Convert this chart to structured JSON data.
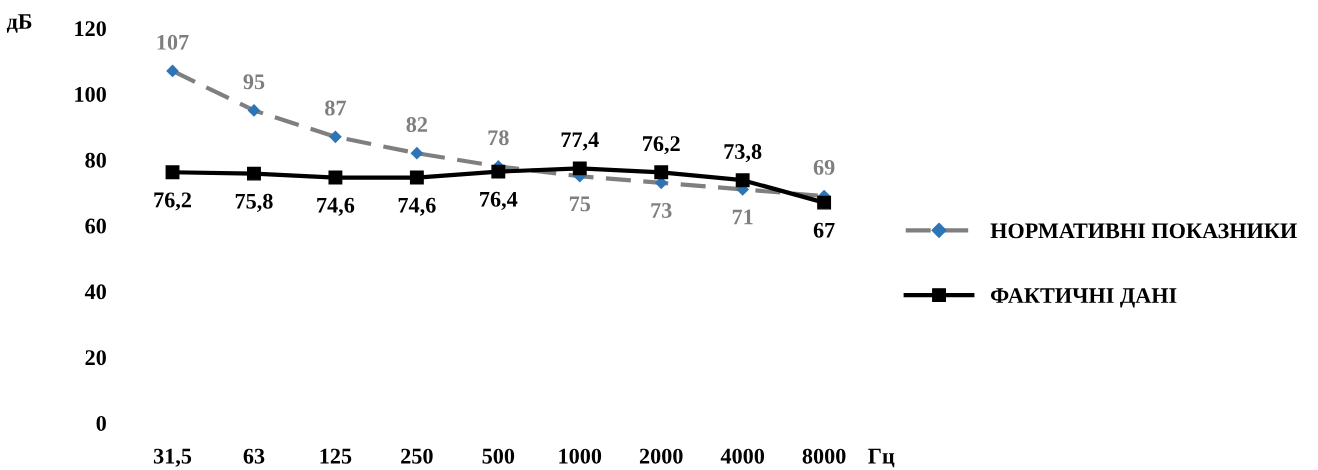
{
  "chart_data": {
    "type": "line",
    "ylabel": "дБ",
    "xlabel": "Гц",
    "categories": [
      "31,5",
      "63",
      "125",
      "250",
      "500",
      "1000",
      "2000",
      "4000",
      "8000"
    ],
    "series": [
      {
        "name": "НОРМАТИВНІ ПОКАЗНИКИ",
        "color": "#7f7f7f",
        "colors": [
          "#2e75b6",
          "#2e75b6",
          "#2e75b6",
          "#2e75b6",
          "#2e75b6",
          "#2e75b6",
          "#2e75b6",
          "#2e75b6",
          "#2e75b6"
        ],
        "marker": "diamond",
        "line_style": "dashed",
        "values": [
          107,
          95,
          87,
          82,
          78,
          75,
          73,
          71,
          69
        ],
        "value_labels": [
          "107",
          "95",
          "87",
          "82",
          "78",
          "75",
          "73",
          "71",
          "69"
        ]
      },
      {
        "name": "ФАКТИЧНІ ДАНІ",
        "color": "#000000",
        "marker": "square",
        "line_style": "solid",
        "values": [
          76.2,
          75.8,
          74.6,
          74.6,
          76.4,
          77.4,
          76.2,
          73.8,
          67
        ],
        "value_labels": [
          "76,2",
          "75,8",
          "74,6",
          "74,6",
          "76,4",
          "77,4",
          "76,2",
          "73,8",
          "67"
        ]
      }
    ],
    "ylim": [
      0,
      120
    ],
    "yticks": [
      0,
      20,
      40,
      60,
      80,
      100,
      120
    ],
    "grid": false,
    "legend": "right"
  }
}
